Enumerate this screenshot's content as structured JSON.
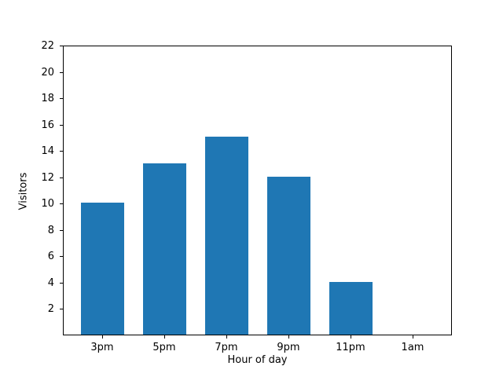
{
  "chart_data": {
    "type": "bar",
    "categories": [
      "3pm",
      "5pm",
      "7pm",
      "9pm",
      "11pm",
      "1am"
    ],
    "values": [
      10,
      13,
      15,
      12,
      4,
      0
    ],
    "title": "",
    "xlabel": "Hour of day",
    "ylabel": "Visitors",
    "ylim": [
      0,
      22
    ],
    "yticks": [
      2,
      4,
      6,
      8,
      10,
      12,
      14,
      16,
      18,
      20,
      22
    ],
    "bar_color": "#1f77b4",
    "grid": false,
    "legend": null,
    "background_color": "#ffffff",
    "spine_color": "#000000",
    "text_color": "#000000"
  }
}
